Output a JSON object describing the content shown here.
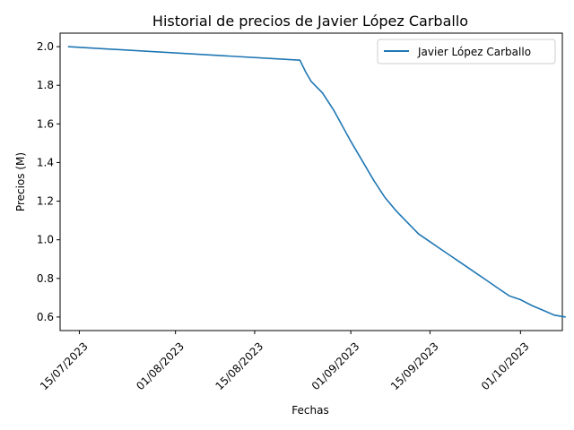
{
  "chart_data": {
    "type": "line",
    "title": "Historial de precios de Javier López Carballo",
    "xlabel": "Fechas",
    "ylabel": "Precios (M)",
    "x_tick_labels": [
      "15/07/2023",
      "01/08/2023",
      "15/08/2023",
      "01/09/2023",
      "15/09/2023",
      "01/10/2023"
    ],
    "x_ticks_day": [
      14,
      31,
      45,
      62,
      76,
      92
    ],
    "x_range_day": [
      10.6,
      99.4
    ],
    "y_ticks": [
      0.6,
      0.8,
      1.0,
      1.2,
      1.4,
      1.6,
      1.8,
      2.0
    ],
    "ylim": [
      0.53,
      2.07
    ],
    "legend_position": "top-right",
    "series": [
      {
        "name": "Javier López Carballo",
        "color": "#1f77b4",
        "points_day_value": [
          [
            12,
            2.0
          ],
          [
            53,
            1.93
          ],
          [
            54,
            1.87
          ],
          [
            55,
            1.82
          ],
          [
            57,
            1.76
          ],
          [
            59,
            1.67
          ],
          [
            62,
            1.51
          ],
          [
            64,
            1.41
          ],
          [
            66,
            1.31
          ],
          [
            68,
            1.22
          ],
          [
            70,
            1.15
          ],
          [
            72,
            1.09
          ],
          [
            74,
            1.03
          ],
          [
            76,
            0.99
          ],
          [
            78,
            0.95
          ],
          [
            80,
            0.91
          ],
          [
            82,
            0.87
          ],
          [
            84,
            0.83
          ],
          [
            86,
            0.79
          ],
          [
            88,
            0.75
          ],
          [
            90,
            0.71
          ],
          [
            91,
            0.7
          ],
          [
            92,
            0.69
          ],
          [
            94,
            0.66
          ],
          [
            96,
            0.635
          ],
          [
            98,
            0.61
          ],
          [
            100,
            0.6
          ]
        ]
      }
    ]
  }
}
